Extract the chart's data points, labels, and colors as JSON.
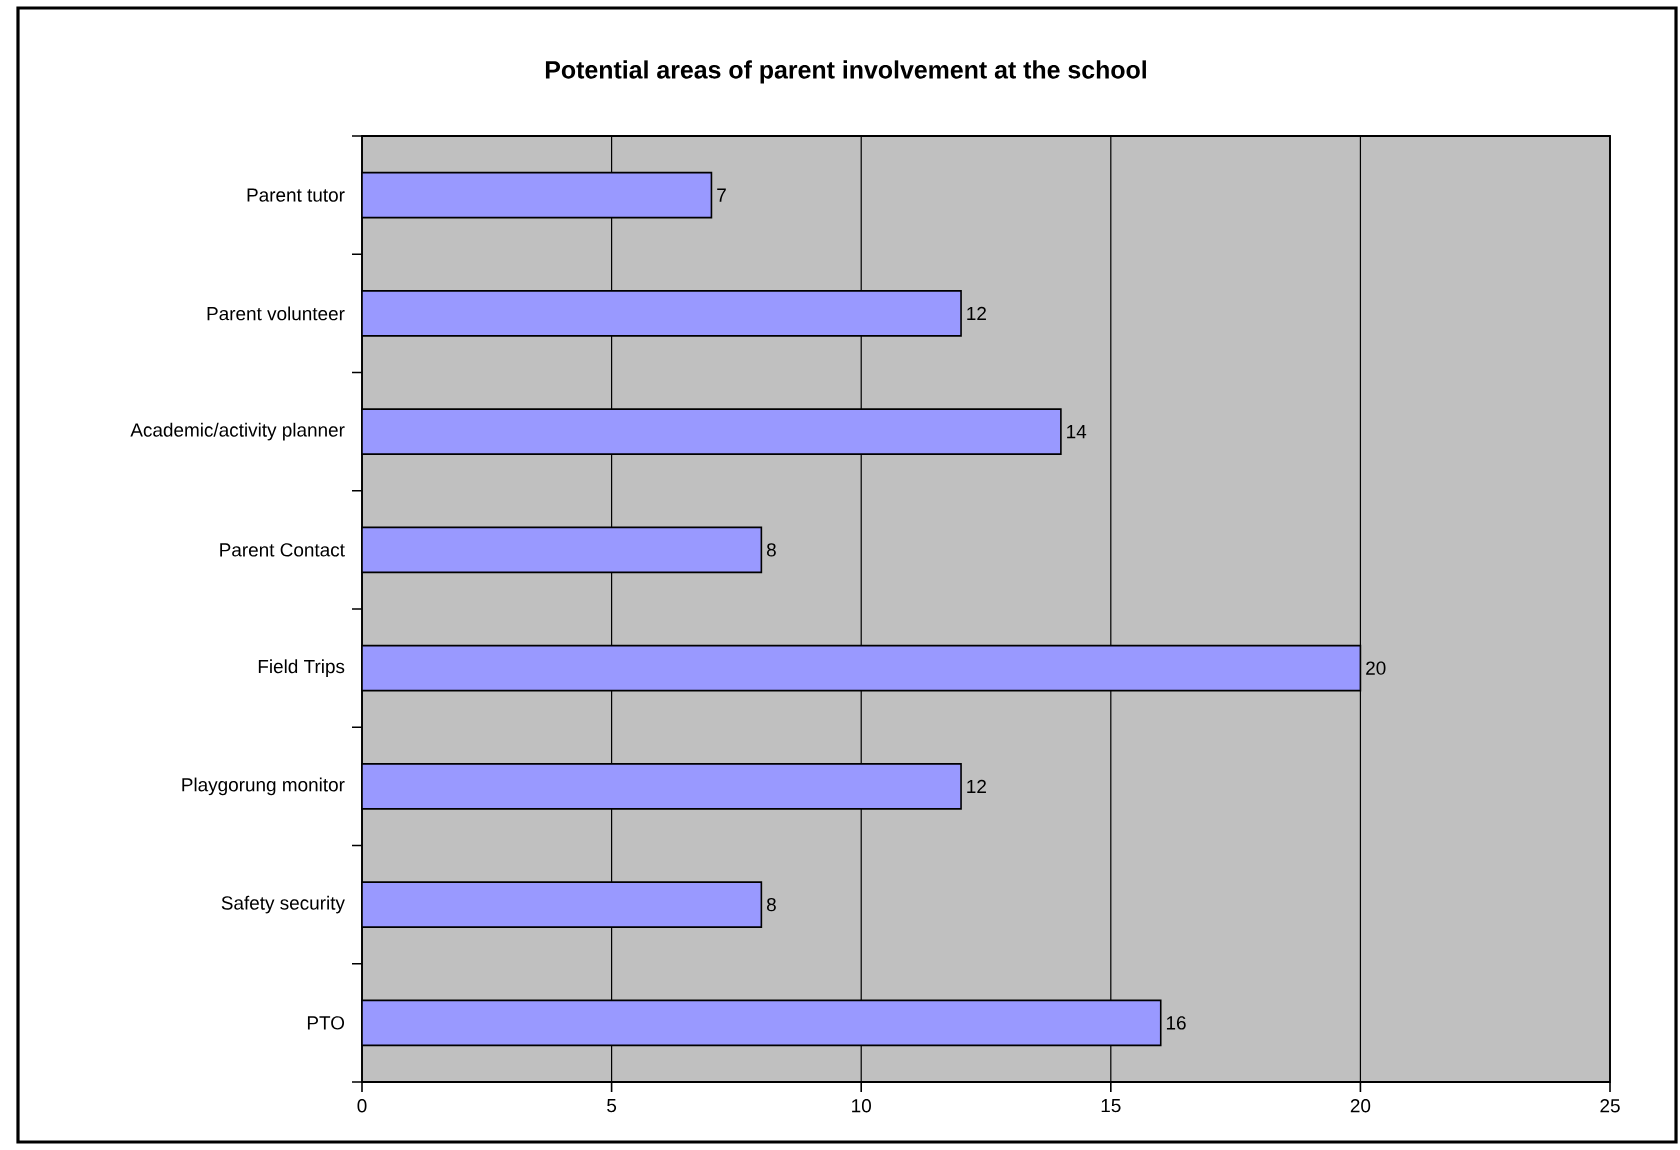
{
  "chart_data": {
    "type": "bar",
    "orientation": "horizontal",
    "title": "Potential areas of parent involvement at the school",
    "categories": [
      "Parent tutor",
      "Parent volunteer",
      "Academic/activity planner",
      "Parent Contact",
      "Field Trips",
      "Playgorung monitor",
      "Safety security",
      "PTO"
    ],
    "values": [
      7,
      12,
      14,
      8,
      20,
      12,
      8,
      16
    ],
    "color": "#9999ff",
    "xlim": [
      0,
      25
    ],
    "xticks": [
      0,
      5,
      10,
      15,
      20,
      25
    ],
    "grid": "x",
    "data_labels": true
  }
}
